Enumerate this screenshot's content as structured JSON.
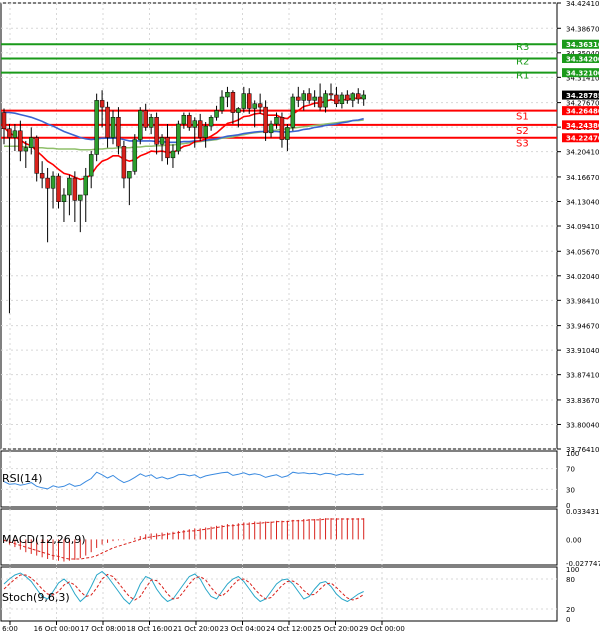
{
  "chart_data": {
    "type": "candlestick",
    "colors": {
      "bull": "#2e9e2e",
      "bear": "#d9221c",
      "ma_fast": "#ff0000",
      "ma_mid": "#3a63d1",
      "ma_slow": "#8fbf6a",
      "resistance": "#1a9a1a",
      "support": "#ff0000",
      "current_tag": "#000000",
      "rsi_line": "#3a8ae0",
      "macd_hist": "#d9221c",
      "macd_signal": "#d9221c",
      "stoch_main": "#2aa7c9",
      "stoch_signal": "#d9221c",
      "grid": "#d7d7d7"
    },
    "price_axis": {
      "min": 33.7641,
      "max": 34.4241,
      "ticks": [
        "34.42410",
        "34.38670",
        "34.35040",
        "34.31410",
        "34.27670",
        "34.24040",
        "34.20410",
        "34.16670",
        "34.13040",
        "34.09410",
        "34.05670",
        "34.02040",
        "33.98410",
        "33.94670",
        "33.91040",
        "33.87410",
        "33.83670",
        "33.80040",
        "33.76410"
      ]
    },
    "x_axis": {
      "labels": [
        "6:00",
        "16 Oct 00:00",
        "17 Oct 08:00",
        "18 Oct 16:00",
        "21 Oct 20:00",
        "23 Oct 04:00",
        "24 Oct 12:00",
        "25 Oct 20:00",
        "29 Oct 00:00"
      ]
    },
    "current_price": "34.28785",
    "levels": [
      {
        "name": "R3",
        "value": 34.3631,
        "label": "34.36310",
        "kind": "resistance"
      },
      {
        "name": "R2",
        "value": 34.342,
        "label": "34.34200",
        "kind": "resistance"
      },
      {
        "name": "R1",
        "value": 34.321,
        "label": "34.32100",
        "kind": "resistance"
      },
      {
        "name": "S1",
        "value": 34.2648,
        "label": "34.26480",
        "kind": "support"
      },
      {
        "name": "S2",
        "value": 34.2438,
        "label": "34.24380",
        "kind": "support"
      },
      {
        "name": "S3",
        "value": 34.2247,
        "label": "34.22470",
        "kind": "support"
      }
    ],
    "candles": [
      [
        34.262,
        34.268,
        34.215,
        34.238
      ],
      [
        34.238,
        34.245,
        33.965,
        34.225
      ],
      [
        34.225,
        34.245,
        34.205,
        34.235
      ],
      [
        34.235,
        34.25,
        34.19,
        34.205
      ],
      [
        34.205,
        34.22,
        34.18,
        34.21
      ],
      [
        34.21,
        34.24,
        34.2,
        34.225
      ],
      [
        34.225,
        34.228,
        34.16,
        34.172
      ],
      [
        34.172,
        34.19,
        34.15,
        34.165
      ],
      [
        34.165,
        34.18,
        34.07,
        34.15
      ],
      [
        34.15,
        34.175,
        34.12,
        34.168
      ],
      [
        34.168,
        34.172,
        34.12,
        34.13
      ],
      [
        34.13,
        34.15,
        34.1,
        34.14
      ],
      [
        34.14,
        34.17,
        34.11,
        34.165
      ],
      [
        34.165,
        34.175,
        34.1,
        34.132
      ],
      [
        34.132,
        34.14,
        34.085,
        34.14
      ],
      [
        34.14,
        34.18,
        34.1,
        34.168
      ],
      [
        34.168,
        34.205,
        34.15,
        34.2
      ],
      [
        34.2,
        34.29,
        34.19,
        34.28
      ],
      [
        34.28,
        34.295,
        34.24,
        34.27
      ],
      [
        34.27,
        34.278,
        34.21,
        34.225
      ],
      [
        34.225,
        34.265,
        34.215,
        34.255
      ],
      [
        34.255,
        34.27,
        34.2,
        34.212
      ],
      [
        34.212,
        34.22,
        34.15,
        34.165
      ],
      [
        34.165,
        34.175,
        34.125,
        34.175
      ],
      [
        34.175,
        34.23,
        34.17,
        34.222
      ],
      [
        34.222,
        34.27,
        34.215,
        34.265
      ],
      [
        34.265,
        34.275,
        34.235,
        34.24
      ],
      [
        34.24,
        34.26,
        34.23,
        34.255
      ],
      [
        34.255,
        34.262,
        34.2,
        34.215
      ],
      [
        34.215,
        34.23,
        34.19,
        34.225
      ],
      [
        34.225,
        34.245,
        34.185,
        34.195
      ],
      [
        34.195,
        34.215,
        34.18,
        34.205
      ],
      [
        34.205,
        34.25,
        34.2,
        34.245
      ],
      [
        34.245,
        34.262,
        34.238,
        34.258
      ],
      [
        34.258,
        34.262,
        34.235,
        34.24
      ],
      [
        34.24,
        34.255,
        34.21,
        34.25
      ],
      [
        34.25,
        34.26,
        34.22,
        34.225
      ],
      [
        34.225,
        34.248,
        34.21,
        34.242
      ],
      [
        34.242,
        34.258,
        34.235,
        34.255
      ],
      [
        34.255,
        34.272,
        34.25,
        34.265
      ],
      [
        34.265,
        34.295,
        34.26,
        34.285
      ],
      [
        34.285,
        34.3,
        34.27,
        34.292
      ],
      [
        34.292,
        34.295,
        34.245,
        34.262
      ],
      [
        34.262,
        34.27,
        34.24,
        34.268
      ],
      [
        34.268,
        34.3,
        34.262,
        34.29
      ],
      [
        34.29,
        34.298,
        34.26,
        34.268
      ],
      [
        34.268,
        34.28,
        34.24,
        34.275
      ],
      [
        34.275,
        34.29,
        34.26,
        34.27
      ],
      [
        34.27,
        34.28,
        34.22,
        34.232
      ],
      [
        34.232,
        34.25,
        34.225,
        34.245
      ],
      [
        34.245,
        34.262,
        34.238,
        34.255
      ],
      [
        34.255,
        34.262,
        34.21,
        34.222
      ],
      [
        34.222,
        34.245,
        34.205,
        34.24
      ],
      [
        34.24,
        34.29,
        34.235,
        34.285
      ],
      [
        34.285,
        34.3,
        34.27,
        34.28
      ],
      [
        34.28,
        34.295,
        34.265,
        34.29
      ],
      [
        34.29,
        34.298,
        34.275,
        34.28
      ],
      [
        34.28,
        34.295,
        34.27,
        34.285
      ],
      [
        34.285,
        34.305,
        34.265,
        34.27
      ],
      [
        34.27,
        34.295,
        34.262,
        34.29
      ],
      [
        34.29,
        34.305,
        34.28,
        34.288
      ],
      [
        34.288,
        34.3,
        34.27,
        34.275
      ],
      [
        34.275,
        34.292,
        34.268,
        34.288
      ],
      [
        34.288,
        34.295,
        34.275,
        34.28
      ],
      [
        34.28,
        34.292,
        34.27,
        34.29
      ],
      [
        34.29,
        34.298,
        34.275,
        34.282
      ],
      [
        34.282,
        34.295,
        34.272,
        34.288
      ]
    ],
    "ma_fast": [
      34.24,
      34.232,
      34.227,
      34.221,
      34.216,
      34.213,
      34.205,
      34.198,
      34.19,
      34.185,
      34.178,
      34.172,
      34.17,
      34.166,
      34.163,
      34.165,
      34.17,
      34.182,
      34.19,
      34.193,
      34.198,
      34.198,
      34.193,
      34.19,
      34.192,
      34.198,
      34.201,
      34.205,
      34.204,
      34.205,
      34.203,
      34.203,
      34.207,
      34.212,
      34.214,
      34.219,
      34.22,
      34.223,
      34.227,
      34.232,
      34.239,
      34.246,
      34.248,
      34.251,
      34.256,
      34.257,
      34.26,
      34.261,
      34.258,
      34.258,
      34.258,
      34.254,
      34.253,
      34.26,
      34.265,
      34.271,
      34.273,
      34.276,
      34.276,
      34.279,
      34.281,
      34.279,
      34.281,
      34.281,
      34.283,
      34.283,
      34.284
    ],
    "ma_mid": [
      34.262,
      34.262,
      34.261,
      34.259,
      34.257,
      34.255,
      34.252,
      34.249,
      34.245,
      34.242,
      34.238,
      34.234,
      34.231,
      34.228,
      34.225,
      34.223,
      34.222,
      34.223,
      34.224,
      34.224,
      34.224,
      34.224,
      34.222,
      34.22,
      34.22,
      34.22,
      34.22,
      34.22,
      34.219,
      34.219,
      34.218,
      34.218,
      34.218,
      34.219,
      34.219,
      34.22,
      34.22,
      34.221,
      34.222,
      34.223,
      34.225,
      34.227,
      34.228,
      34.229,
      34.231,
      34.232,
      34.233,
      34.234,
      34.234,
      34.234,
      34.234,
      34.233,
      34.233,
      34.234,
      34.235,
      34.237,
      34.238,
      34.24,
      34.241,
      34.243,
      34.244,
      34.245,
      34.247,
      34.248,
      34.25,
      34.251,
      34.253
    ],
    "ma_slow": [
      34.212,
      34.212,
      34.212,
      34.212,
      34.211,
      34.211,
      34.21,
      34.21,
      34.209,
      34.209,
      34.208,
      34.208,
      34.208,
      34.208,
      34.207,
      34.207,
      34.207,
      34.208,
      34.208,
      34.209,
      34.209,
      34.21,
      34.21,
      34.21,
      34.211,
      34.211,
      34.212,
      34.212,
      34.213,
      34.213,
      34.214,
      34.214,
      34.215,
      34.216,
      34.217,
      34.218,
      34.219,
      34.22,
      34.221,
      34.222,
      34.224,
      34.225,
      34.226,
      34.228,
      34.229,
      34.231,
      34.232,
      34.233,
      34.234,
      34.235,
      34.236,
      34.237,
      34.238,
      34.239,
      34.24,
      34.241,
      34.242,
      34.243,
      34.244,
      34.245,
      34.246,
      34.247,
      34.248,
      34.249,
      34.25,
      34.25,
      34.251
    ],
    "rsi": {
      "label": "RSI(14)",
      "ticks": [
        "100",
        "70",
        "30",
        "0"
      ],
      "ylim": [
        0,
        100
      ],
      "values": [
        45,
        40,
        41,
        38,
        40,
        43,
        36,
        33,
        31,
        37,
        34,
        36,
        41,
        36,
        38,
        45,
        51,
        63,
        58,
        52,
        57,
        49,
        43,
        47,
        53,
        60,
        55,
        58,
        51,
        54,
        50,
        53,
        58,
        59,
        56,
        58,
        52,
        56,
        58,
        60,
        62,
        63,
        57,
        59,
        62,
        58,
        60,
        58,
        53,
        56,
        58,
        53,
        56,
        63,
        61,
        62,
        60,
        61,
        58,
        61,
        60,
        57,
        60,
        58,
        60,
        58,
        59
      ]
    },
    "macd": {
      "label": "MACD(12,26,9)",
      "ticks": [
        "0.033431",
        "0.00",
        "-0.027747"
      ],
      "ylim": [
        -0.0277,
        0.0334
      ],
      "hist": [
        -0.002,
        -0.006,
        -0.009,
        -0.012,
        -0.015,
        -0.017,
        -0.019,
        -0.021,
        -0.023,
        -0.024,
        -0.025,
        -0.026,
        -0.025,
        -0.024,
        -0.022,
        -0.019,
        -0.015,
        -0.01,
        -0.006,
        -0.004,
        -0.002,
        -0.001,
        -0.001,
        0.0,
        0.002,
        0.004,
        0.006,
        0.007,
        0.007,
        0.008,
        0.008,
        0.009,
        0.01,
        0.011,
        0.012,
        0.013,
        0.013,
        0.014,
        0.015,
        0.016,
        0.017,
        0.018,
        0.018,
        0.019,
        0.02,
        0.02,
        0.021,
        0.021,
        0.021,
        0.021,
        0.022,
        0.022,
        0.022,
        0.023,
        0.023,
        0.024,
        0.024,
        0.024,
        0.025,
        0.025,
        0.025,
        0.025,
        0.025,
        0.025,
        0.025,
        0.025,
        0.025
      ],
      "signal": [
        -0.001,
        -0.003,
        -0.005,
        -0.007,
        -0.009,
        -0.011,
        -0.013,
        -0.015,
        -0.017,
        -0.019,
        -0.02,
        -0.022,
        -0.023,
        -0.023,
        -0.023,
        -0.022,
        -0.021,
        -0.019,
        -0.016,
        -0.013,
        -0.01,
        -0.008,
        -0.006,
        -0.004,
        -0.002,
        0.0,
        0.002,
        0.003,
        0.004,
        0.005,
        0.006,
        0.007,
        0.008,
        0.009,
        0.01,
        0.01,
        0.011,
        0.012,
        0.013,
        0.014,
        0.015,
        0.016,
        0.016,
        0.017,
        0.018,
        0.018,
        0.019,
        0.019,
        0.02,
        0.02,
        0.021,
        0.021,
        0.021,
        0.022,
        0.022,
        0.022,
        0.023,
        0.023,
        0.023,
        0.024,
        0.024,
        0.024,
        0.024,
        0.024,
        0.024,
        0.024,
        0.024
      ]
    },
    "stoch": {
      "label": "Stoch(9,6,3)",
      "ticks": [
        "100",
        "80",
        "20",
        "0"
      ],
      "ylim": [
        0,
        100
      ],
      "main": [
        70,
        80,
        88,
        92,
        85,
        75,
        60,
        45,
        40,
        55,
        72,
        80,
        70,
        50,
        35,
        45,
        65,
        88,
        95,
        85,
        70,
        55,
        40,
        30,
        45,
        70,
        85,
        80,
        60,
        45,
        35,
        40,
        55,
        70,
        85,
        90,
        80,
        60,
        45,
        40,
        55,
        70,
        80,
        85,
        75,
        60,
        45,
        35,
        40,
        55,
        70,
        78,
        80,
        70,
        55,
        40,
        45,
        60,
        72,
        75,
        65,
        50,
        40,
        35,
        42,
        50,
        55
      ],
      "signal": [
        60,
        70,
        80,
        88,
        88,
        82,
        72,
        60,
        50,
        48,
        55,
        68,
        74,
        68,
        55,
        45,
        48,
        62,
        80,
        89,
        85,
        72,
        58,
        45,
        38,
        45,
        62,
        78,
        77,
        65,
        50,
        40,
        42,
        55,
        70,
        82,
        85,
        78,
        63,
        50,
        46,
        55,
        68,
        78,
        80,
        73,
        60,
        48,
        40,
        43,
        55,
        67,
        75,
        76,
        69,
        57,
        48,
        49,
        60,
        70,
        72,
        63,
        52,
        42,
        38,
        42,
        49
      ]
    }
  }
}
